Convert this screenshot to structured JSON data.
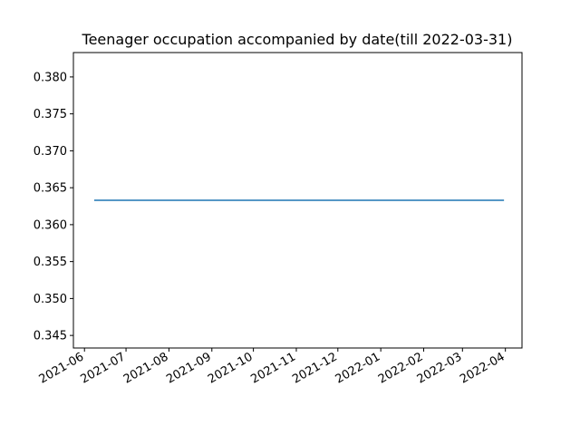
{
  "chart_data": {
    "type": "line",
    "title": "Teenager occupation accompanied by date(till 2022-03-31)",
    "xlabel": "",
    "ylabel": "",
    "x_ticks": [
      "2021-06",
      "2021-07",
      "2021-08",
      "2021-09",
      "2021-10",
      "2021-11",
      "2021-12",
      "2022-01",
      "2022-02",
      "2022-03",
      "2022-04"
    ],
    "xlim": [
      "2021-05-24",
      "2022-04-13"
    ],
    "y_ticks": [
      0.345,
      0.35,
      0.355,
      0.36,
      0.365,
      0.37,
      0.375,
      0.38
    ],
    "ylim": [
      0.3433,
      0.3833
    ],
    "grid": false,
    "series": [
      {
        "name": "Teenager occupation",
        "color": "#1f77b4",
        "x": [
          "2021-06-08",
          "2022-03-31"
        ],
        "values": [
          0.3633,
          0.3633
        ]
      }
    ]
  }
}
